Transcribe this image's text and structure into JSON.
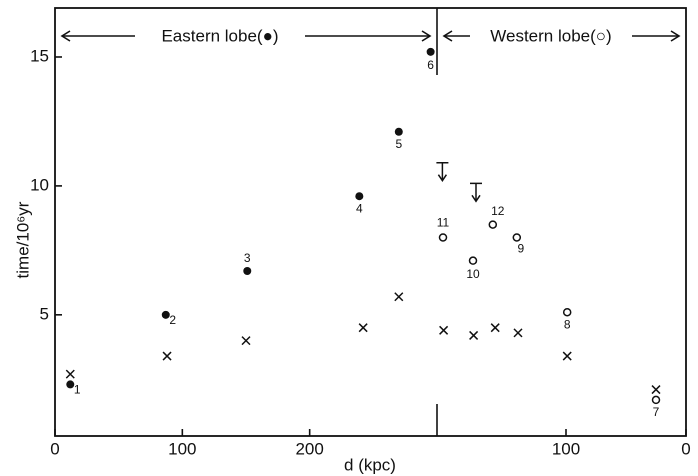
{
  "chart_data": {
    "type": "scatter",
    "header_left": "Eastern lobe(●)",
    "header_right": "Western lobe(○)",
    "xlabel": "d (kpc)",
    "ylabel": "time/10⁶yr",
    "xlim": [
      0,
      300
    ],
    "xticks": [
      0,
      100,
      200
    ],
    "x2lim": [
      207.5,
      0
    ],
    "x2ticks": [
      100,
      0
    ],
    "ylim": [
      0.3,
      16.9
    ],
    "yticks": [
      5,
      10,
      15
    ],
    "color": "#111111",
    "series": [
      {
        "marker": "filled",
        "x": [
          12,
          87,
          151,
          239,
          270,
          295
        ],
        "values": [
          2.3,
          5.0,
          6.7,
          9.6,
          12.1,
          15.2
        ],
        "point_labels": [
          "1",
          "2",
          "3",
          "4",
          "5",
          "6"
        ]
      },
      {
        "marker": "open",
        "axis": "x2",
        "x": [
          25,
          99,
          141,
          177.5,
          202.5,
          161
        ],
        "values": [
          1.7,
          5.1,
          8.0,
          7.1,
          8.0,
          8.5
        ],
        "point_labels": [
          "7",
          "8",
          "9",
          "10",
          "11",
          "12"
        ]
      },
      {
        "marker": "cross",
        "x": [
          12,
          88,
          150,
          242,
          270
        ],
        "values": [
          2.7,
          3.4,
          4.0,
          4.5,
          5.7
        ]
      },
      {
        "marker": "cross",
        "axis": "x2",
        "x": [
          202,
          177,
          159,
          140,
          99,
          25
        ],
        "values": [
          4.4,
          4.2,
          4.5,
          4.3,
          3.4,
          2.1
        ]
      },
      {
        "marker": "upper-limit",
        "axis": "x2",
        "x": [
          203,
          175
        ],
        "values": [
          10.9,
          10.1
        ]
      }
    ]
  }
}
